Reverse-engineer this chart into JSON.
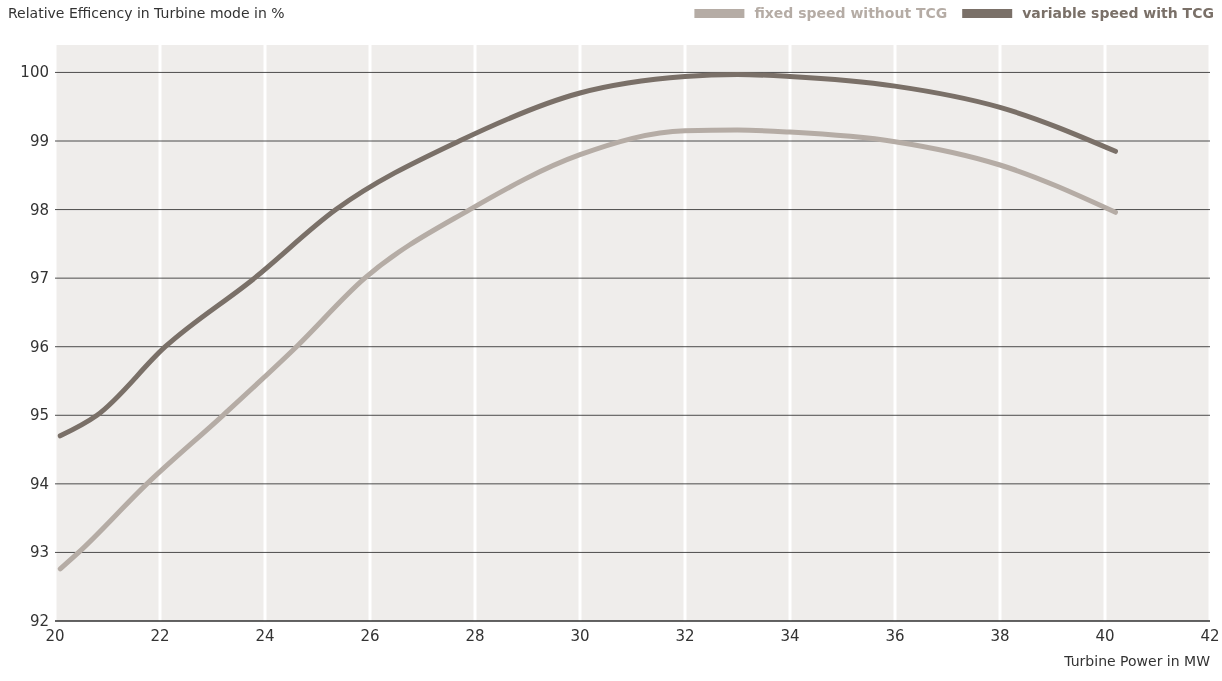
{
  "chart_data": {
    "type": "line",
    "ylabel": "Relative Efficency in Turbine mode in %",
    "xlabel": "Turbine Power in MW",
    "xlim": [
      20,
      42
    ],
    "xticks": [
      20,
      22,
      24,
      26,
      28,
      30,
      32,
      34,
      36,
      38,
      40,
      42
    ],
    "ylim": [
      92,
      100.4
    ],
    "yticks": [
      92,
      93,
      94,
      95,
      96,
      97,
      98,
      99,
      100
    ],
    "grid": true,
    "legend": "top right",
    "marker": "none",
    "line_style": "solid",
    "series": [
      {
        "name": "variable speed with TCG",
        "color": "#7a7068",
        "x": [
          20.1,
          20.8,
          22.1,
          23.8,
          25.35,
          27.7,
          30,
          32,
          33,
          34,
          36,
          38,
          40.2
        ],
        "values": [
          94.7,
          95,
          96,
          97,
          98,
          99,
          99.7,
          99.94,
          99.97,
          99.94,
          99.8,
          99.49,
          98.85
        ]
      },
      {
        "name": "fixed speed without TCG",
        "color": "#b5aca5",
        "x": [
          20.1,
          20.45,
          21.75,
          23.2,
          24.6,
          25.9,
          27.9,
          30,
          32,
          33,
          34,
          36,
          38,
          40.2
        ],
        "values": [
          92.76,
          93,
          94,
          95,
          96,
          97,
          98,
          98.8,
          99.15,
          99.16,
          99.13,
          98.99,
          98.65,
          97.96
        ]
      }
    ]
  }
}
